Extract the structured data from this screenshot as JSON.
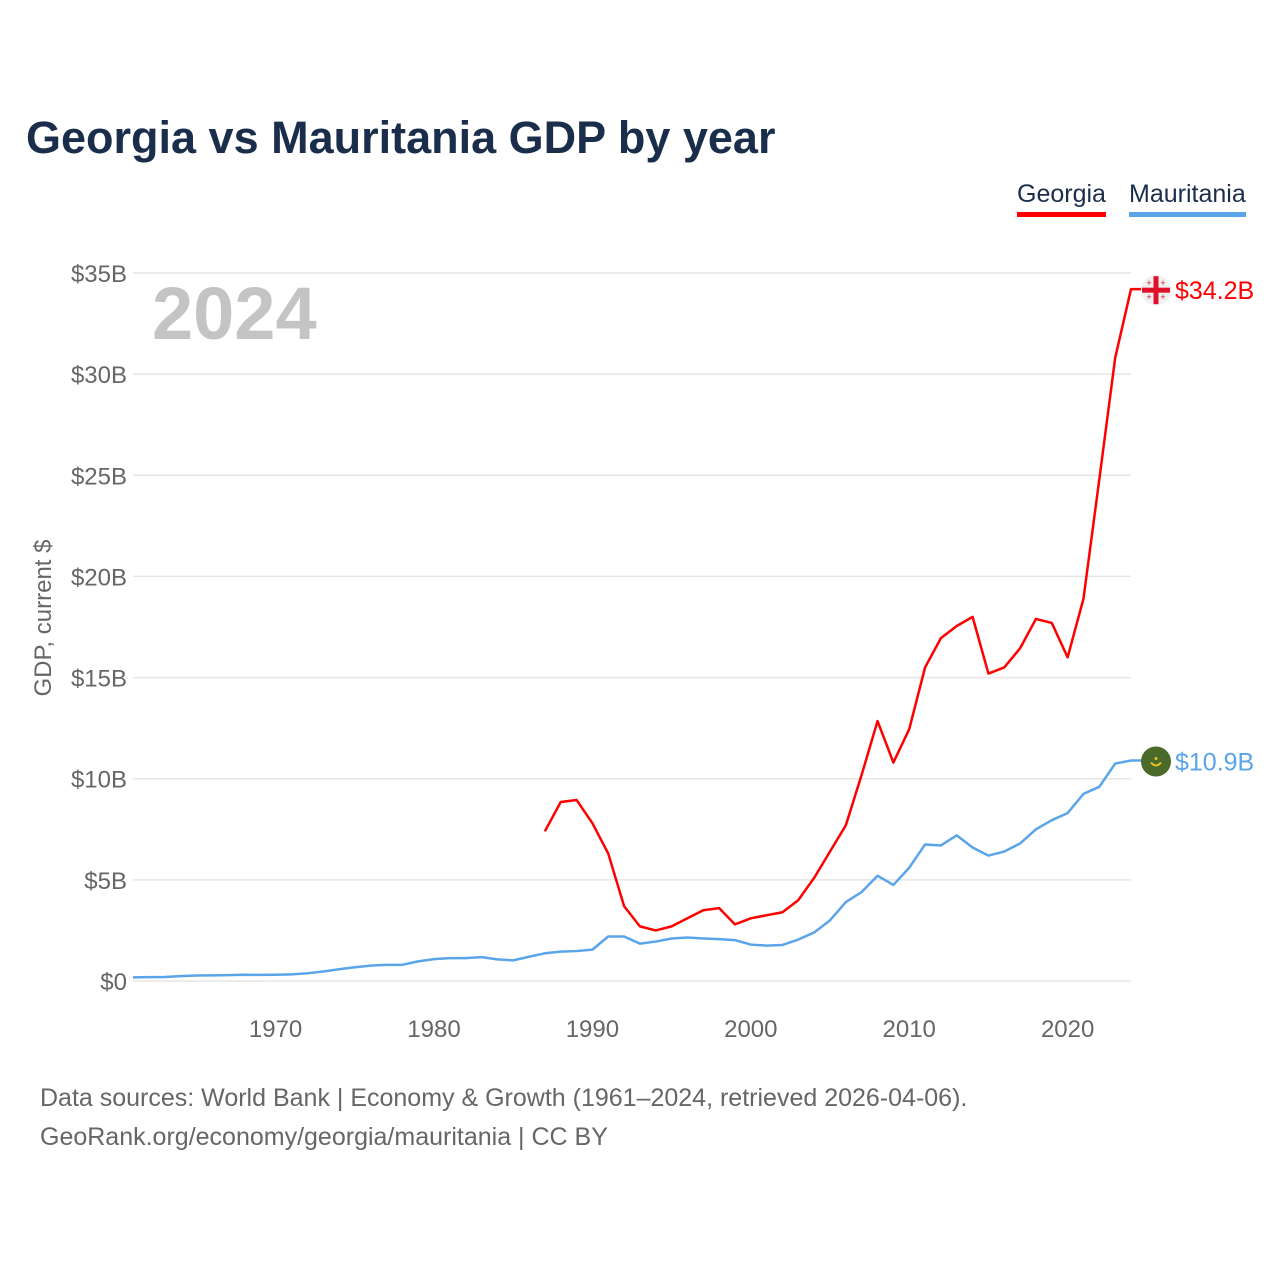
{
  "title": "Georgia vs Mauritania GDP by year",
  "footer": {
    "line1": "Data sources: World Bank | Economy & Growth (1961–2024, retrieved 2026-04-06).",
    "line2": "GeoRank.org/economy/georgia/mauritania | CC BY"
  },
  "chart_data": {
    "type": "line",
    "title": "Georgia vs Mauritania GDP by year",
    "ylabel": "GDP, current $",
    "xlabel": "",
    "year_label": "2024",
    "ylim": [
      0,
      35
    ],
    "xlim": [
      1961,
      2024
    ],
    "yticks": [
      {
        "v": 0,
        "label": "$0"
      },
      {
        "v": 5,
        "label": "$5B"
      },
      {
        "v": 10,
        "label": "$10B"
      },
      {
        "v": 15,
        "label": "$15B"
      },
      {
        "v": 20,
        "label": "$20B"
      },
      {
        "v": 25,
        "label": "$25B"
      },
      {
        "v": 30,
        "label": "$30B"
      },
      {
        "v": 35,
        "label": "$35B"
      }
    ],
    "xticks": [
      {
        "v": 1970,
        "label": "1970"
      },
      {
        "v": 1980,
        "label": "1980"
      },
      {
        "v": 1990,
        "label": "1990"
      },
      {
        "v": 2000,
        "label": "2000"
      },
      {
        "v": 2010,
        "label": "2010"
      },
      {
        "v": 2020,
        "label": "2020"
      }
    ],
    "grid": true,
    "legend_position": "top-right",
    "series": [
      {
        "name": "Georgia",
        "color": "#ff0000",
        "end_label": "$34.2B",
        "flag": "georgia-flag-icon",
        "start_year": 1987,
        "values": [
          7.4,
          8.85,
          8.95,
          7.8,
          6.3,
          3.7,
          2.7,
          2.5,
          2.7,
          3.1,
          3.5,
          3.6,
          2.8,
          3.1,
          3.25,
          3.4,
          4.0,
          5.1,
          6.4,
          7.7,
          10.2,
          12.85,
          10.8,
          12.45,
          15.5,
          16.95,
          17.55,
          18.0,
          15.2,
          15.5,
          16.45,
          17.9,
          17.7,
          16.0,
          18.9,
          24.8,
          30.8,
          34.2
        ]
      },
      {
        "name": "Mauritania",
        "color": "#5aa4ea",
        "end_label": "$10.9B",
        "flag": "mauritania-flag-icon",
        "start_year": 1961,
        "values": [
          0.18,
          0.19,
          0.2,
          0.24,
          0.27,
          0.28,
          0.29,
          0.31,
          0.3,
          0.31,
          0.33,
          0.38,
          0.47,
          0.58,
          0.68,
          0.76,
          0.8,
          0.8,
          0.97,
          1.08,
          1.13,
          1.13,
          1.18,
          1.07,
          1.02,
          1.2,
          1.37,
          1.45,
          1.48,
          1.55,
          2.2,
          2.2,
          1.85,
          1.95,
          2.1,
          2.15,
          2.1,
          2.07,
          2.02,
          1.8,
          1.75,
          1.78,
          2.05,
          2.4,
          3.0,
          3.9,
          4.4,
          5.2,
          4.75,
          5.6,
          6.75,
          6.7,
          7.2,
          6.6,
          6.2,
          6.4,
          6.8,
          7.5,
          7.95,
          8.3,
          9.25,
          9.6,
          10.75,
          10.9
        ]
      }
    ]
  }
}
